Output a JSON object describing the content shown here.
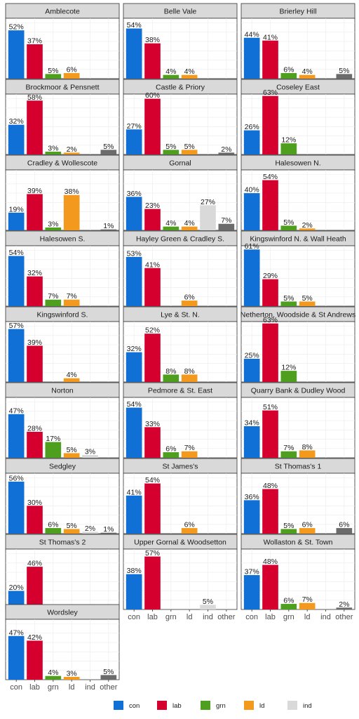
{
  "chart_data": {
    "type": "bar",
    "categories": [
      "con",
      "lab",
      "grn",
      "ld",
      "ind",
      "other"
    ],
    "colors": {
      "con": "#1170d6",
      "lab": "#d6002f",
      "grn": "#4e9f1d",
      "ld": "#f39a1e",
      "ind": "#d9d9d9",
      "other": "#6b6b6b"
    },
    "legend": {
      "position": "bottom",
      "entries": [
        "con",
        "lab",
        "grn",
        "ld",
        "ind"
      ]
    },
    "ylim": [
      0,
      65
    ],
    "grid": true,
    "panels": [
      {
        "title": "Amblecote",
        "values": [
          52,
          37,
          5,
          6,
          null,
          null
        ],
        "labels": [
          "52%",
          "37%",
          "5%",
          "6%",
          "",
          ""
        ]
      },
      {
        "title": "Belle Vale",
        "values": [
          54,
          38,
          4,
          4,
          null,
          null
        ],
        "labels": [
          "54%",
          "38%",
          "4%",
          "4%",
          "",
          ""
        ]
      },
      {
        "title": "Brierley Hill",
        "values": [
          44,
          41,
          6,
          4,
          null,
          5
        ],
        "labels": [
          "44%",
          "41%",
          "6%",
          "4%",
          "",
          "5%"
        ]
      },
      {
        "title": "Brockmoor & Pensnett",
        "values": [
          32,
          58,
          3,
          2,
          null,
          5
        ],
        "labels": [
          "32%",
          "58%",
          "3%",
          "2%",
          "",
          "5%"
        ]
      },
      {
        "title": "Castle & Priory",
        "values": [
          27,
          60,
          5,
          5,
          null,
          2
        ],
        "labels": [
          "27%",
          "60%",
          "5%",
          "5%",
          "",
          "2%"
        ]
      },
      {
        "title": "Coseley East",
        "values": [
          26,
          63,
          12,
          null,
          null,
          null
        ],
        "labels": [
          "26%",
          "63%",
          "12%",
          "",
          "",
          ""
        ]
      },
      {
        "title": "Cradley & Wollescote",
        "values": [
          19,
          39,
          3,
          38,
          null,
          1
        ],
        "labels": [
          "19%",
          "39%",
          "3%",
          "38%",
          "",
          "1%"
        ]
      },
      {
        "title": "Gornal",
        "values": [
          36,
          23,
          4,
          4,
          27,
          7
        ],
        "labels": [
          "36%",
          "23%",
          "4%",
          "4%",
          "27%",
          "7%"
        ]
      },
      {
        "title": "Halesowen N.",
        "values": [
          40,
          54,
          5,
          2,
          null,
          null
        ],
        "labels": [
          "40%",
          "54%",
          "5%",
          "2%",
          "",
          ""
        ]
      },
      {
        "title": "Halesowen S.",
        "values": [
          54,
          32,
          7,
          7,
          null,
          null
        ],
        "labels": [
          "54%",
          "32%",
          "7%",
          "7%",
          "",
          ""
        ]
      },
      {
        "title": "Hayley Green & Cradley S.",
        "values": [
          53,
          41,
          null,
          6,
          null,
          null
        ],
        "labels": [
          "53%",
          "41%",
          "",
          "6%",
          "",
          ""
        ]
      },
      {
        "title": "Kingswinford N. & Wall Heath",
        "values": [
          61,
          29,
          5,
          5,
          null,
          null
        ],
        "labels": [
          "61%",
          "29%",
          "5%",
          "5%",
          "",
          ""
        ]
      },
      {
        "title": "Kingswinford S.",
        "values": [
          57,
          39,
          null,
          4,
          null,
          null
        ],
        "labels": [
          "57%",
          "39%",
          "",
          "4%",
          "",
          ""
        ]
      },
      {
        "title": "Lye & St. N.",
        "values": [
          32,
          52,
          8,
          8,
          null,
          null
        ],
        "labels": [
          "32%",
          "52%",
          "8%",
          "8%",
          "",
          ""
        ]
      },
      {
        "title": "Netherton, Woodside & St Andrews",
        "values": [
          25,
          63,
          12,
          null,
          null,
          null
        ],
        "labels": [
          "25%",
          "63%",
          "12%",
          "",
          "",
          ""
        ]
      },
      {
        "title": "Norton",
        "values": [
          47,
          28,
          17,
          5,
          3,
          null
        ],
        "labels": [
          "47%",
          "28%",
          "17%",
          "5%",
          "3%",
          ""
        ]
      },
      {
        "title": "Pedmore & St. East",
        "values": [
          54,
          33,
          6,
          7,
          null,
          null
        ],
        "labels": [
          "54%",
          "33%",
          "6%",
          "7%",
          "",
          ""
        ]
      },
      {
        "title": "Quarry Bank & Dudley Wood",
        "values": [
          34,
          51,
          7,
          8,
          null,
          null
        ],
        "labels": [
          "34%",
          "51%",
          "7%",
          "8%",
          "",
          ""
        ]
      },
      {
        "title": "Sedgley",
        "values": [
          56,
          30,
          6,
          5,
          2,
          1
        ],
        "labels": [
          "56%",
          "30%",
          "6%",
          "5%",
          "2%",
          "1%"
        ]
      },
      {
        "title": "St James's",
        "values": [
          41,
          54,
          null,
          6,
          null,
          null
        ],
        "labels": [
          "41%",
          "54%",
          "",
          "6%",
          "",
          ""
        ]
      },
      {
        "title": "St Thomas's 1",
        "values": [
          36,
          48,
          5,
          6,
          null,
          6
        ],
        "labels": [
          "36%",
          "48%",
          "5%",
          "6%",
          "",
          "6%"
        ]
      },
      {
        "title": "St Thomas's 2",
        "values": [
          20,
          46,
          null,
          null,
          null,
          null
        ],
        "labels": [
          "20%",
          "46%",
          "",
          "",
          "",
          ""
        ]
      },
      {
        "title": "Upper Gornal & Woodsetton",
        "values": [
          38,
          57,
          null,
          null,
          5,
          null
        ],
        "labels": [
          "38%",
          "57%",
          "",
          "",
          "5%",
          ""
        ]
      },
      {
        "title": "Wollaston & St. Town",
        "values": [
          37,
          48,
          6,
          7,
          null,
          2
        ],
        "labels": [
          "37%",
          "48%",
          "6%",
          "7%",
          "",
          "2%"
        ]
      },
      {
        "title": "Wordsley",
        "values": [
          47,
          42,
          4,
          3,
          null,
          5
        ],
        "labels": [
          "47%",
          "42%",
          "4%",
          "3%",
          "",
          "5%"
        ]
      }
    ]
  }
}
